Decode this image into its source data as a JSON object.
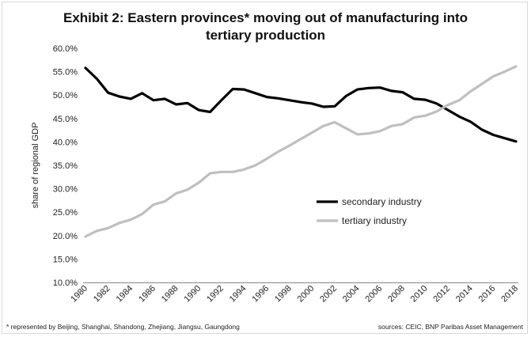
{
  "title_line1": "Exhibit 2: Eastern provinces* moving out of manufacturing into",
  "title_line2": "tertiary production",
  "footnote": "* represented by Beijing, Shanghai, Shandong, Zhejiang, Jiangsu, Gaungdong",
  "sources": "sources: CEIC, BNP Paribas Asset Management",
  "chart_data": {
    "type": "line",
    "title": "Exhibit 2: Eastern provinces* moving out of manufacturing into tertiary production",
    "xlabel": "",
    "ylabel": "share of regional GDP",
    "ylim": [
      10,
      60
    ],
    "y_ticks": [
      "10.0%",
      "15.0%",
      "20.0%",
      "25.0%",
      "30.0%",
      "35.0%",
      "40.0%",
      "45.0%",
      "50.0%",
      "55.0%",
      "60.0%"
    ],
    "x_ticks": [
      "1980",
      "1982",
      "1984",
      "1986",
      "1988",
      "1990",
      "1992",
      "1994",
      "1996",
      "1998",
      "2000",
      "2002",
      "2004",
      "2006",
      "2008",
      "2010",
      "2012",
      "2014",
      "2016",
      "2018"
    ],
    "x": [
      1980,
      1981,
      1982,
      1983,
      1984,
      1985,
      1986,
      1987,
      1988,
      1989,
      1990,
      1991,
      1992,
      1993,
      1994,
      1995,
      1996,
      1997,
      1998,
      1999,
      2000,
      2001,
      2002,
      2003,
      2004,
      2005,
      2006,
      2007,
      2008,
      2009,
      2010,
      2011,
      2012,
      2013,
      2014,
      2015,
      2016,
      2017,
      2018
    ],
    "series": [
      {
        "name": "secondary industry",
        "color": "#000000",
        "values": [
          55.8,
          53.5,
          50.5,
          49.7,
          49.2,
          50.4,
          48.9,
          49.2,
          48.0,
          48.3,
          46.8,
          46.4,
          48.9,
          51.3,
          51.2,
          50.4,
          49.6,
          49.3,
          48.9,
          48.5,
          48.2,
          47.5,
          47.6,
          49.8,
          51.2,
          51.5,
          51.6,
          50.9,
          50.6,
          49.2,
          49.0,
          48.2,
          46.8,
          45.4,
          44.3,
          42.6,
          41.5,
          40.8,
          40.1
        ]
      },
      {
        "name": "tertiary industry",
        "color": "#bfbfbf",
        "values": [
          19.8,
          21.0,
          21.6,
          22.7,
          23.4,
          24.6,
          26.6,
          27.3,
          29.0,
          29.8,
          31.3,
          33.3,
          33.6,
          33.6,
          34.1,
          35.0,
          36.4,
          37.9,
          39.2,
          40.6,
          42.0,
          43.4,
          44.2,
          42.9,
          41.6,
          41.8,
          42.3,
          43.4,
          43.8,
          45.2,
          45.6,
          46.5,
          47.9,
          48.9,
          50.8,
          52.4,
          54.0,
          55.0,
          56.1
        ]
      }
    ],
    "legend": "center-right",
    "grid": false
  }
}
